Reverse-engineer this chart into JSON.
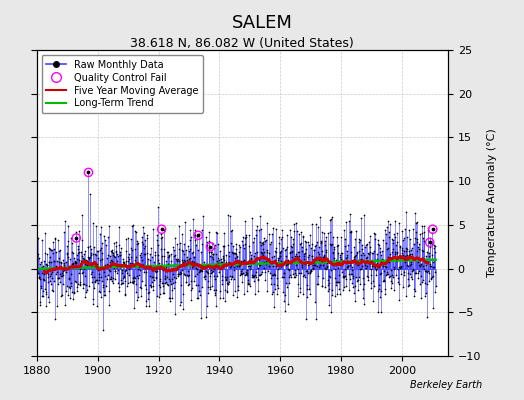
{
  "title": "SALEM",
  "subtitle": "38.618 N, 86.082 W (United States)",
  "credit": "Berkeley Earth",
  "ylabel_right": "Temperature Anomaly (°C)",
  "xlim": [
    1880,
    2015
  ],
  "ylim": [
    -10,
    25
  ],
  "yticks": [
    -10,
    -5,
    0,
    5,
    10,
    15,
    20,
    25
  ],
  "xticks": [
    1880,
    1900,
    1920,
    1940,
    1960,
    1980,
    2000
  ],
  "raw_line_color": "#4444ff",
  "raw_marker_color": "#000000",
  "qc_fail_color": "#ff00ff",
  "moving_avg_color": "#cc0000",
  "trend_color": "#00bb00",
  "background_color": "#e8e8e8",
  "plot_bg_color": "#ffffff",
  "grid_color": "#bbbbbb",
  "title_fontsize": 13,
  "subtitle_fontsize": 9,
  "seed": 42,
  "start_year": 1880,
  "end_year": 2011,
  "noise_std": 2.2,
  "trend_slope": 0.006,
  "qc_fail_points": [
    {
      "year": 1893,
      "value": 3.5
    },
    {
      "year": 1897,
      "value": 11.0
    },
    {
      "year": 1921,
      "value": 4.5
    },
    {
      "year": 1933,
      "value": 3.8
    },
    {
      "year": 1937,
      "value": 2.5
    },
    {
      "year": 2009,
      "value": 3.0
    },
    {
      "year": 2010,
      "value": 4.5
    }
  ]
}
